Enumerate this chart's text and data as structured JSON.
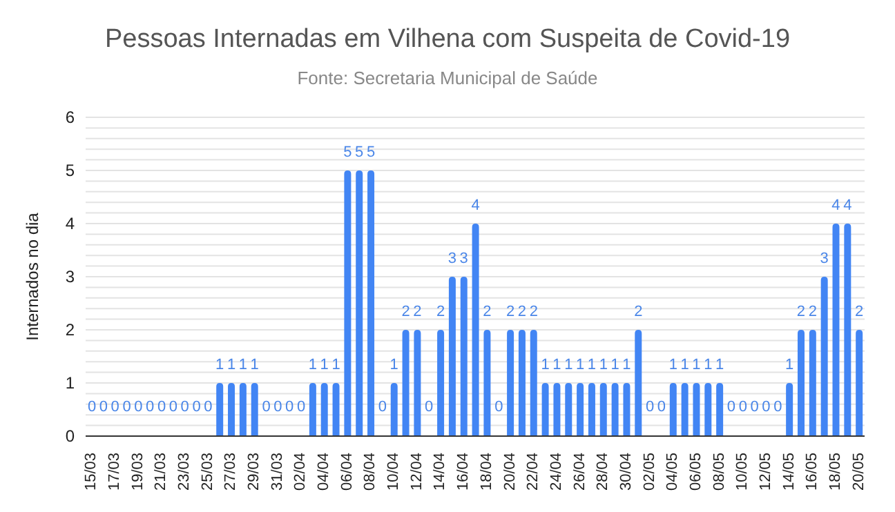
{
  "chart_data": {
    "type": "bar",
    "title": "Pessoas Internadas em Vilhena com Suspeita de Covid-19",
    "subtitle": "Fonte: Secretaria Municipal de Saúde",
    "ylabel": "Internados no dia",
    "categories": [
      "15/03",
      null,
      "17/03",
      null,
      "19/03",
      null,
      "21/03",
      null,
      "23/03",
      null,
      "25/03",
      null,
      "27/03",
      null,
      "29/03",
      null,
      "31/03",
      null,
      "02/04",
      null,
      "04/04",
      null,
      "06/04",
      null,
      "08/04",
      null,
      "10/04",
      null,
      "12/04",
      null,
      "14/04",
      null,
      "16/04",
      null,
      "18/04",
      null,
      "20/04",
      null,
      "22/04",
      null,
      "24/04",
      null,
      "26/04",
      null,
      "28/04",
      null,
      "30/04",
      null,
      "02/05",
      null,
      "04/05",
      null,
      "06/05",
      null,
      "08/05",
      null,
      "10/05",
      null,
      "12/05",
      null,
      "14/05",
      null,
      "16/05",
      null,
      "18/05",
      null,
      "20/05"
    ],
    "values": [
      0,
      0,
      0,
      0,
      0,
      0,
      0,
      0,
      0,
      0,
      0,
      1,
      1,
      1,
      1,
      0,
      0,
      0,
      0,
      1,
      1,
      1,
      5,
      5,
      5,
      0,
      1,
      2,
      2,
      0,
      2,
      3,
      3,
      4,
      2,
      0,
      2,
      2,
      2,
      1,
      1,
      1,
      1,
      1,
      1,
      1,
      1,
      2,
      0,
      0,
      1,
      1,
      1,
      1,
      1,
      0,
      0,
      0,
      0,
      0,
      1,
      2,
      2,
      3,
      4,
      4,
      2
    ],
    "color": "#4285f4",
    "ylim": [
      0,
      6
    ],
    "yticks": [
      0,
      {
        "value": 0.2,
        "label": null
      },
      {
        "value": 0.4,
        "label": null
      },
      {
        "value": 0.6,
        "label": null
      },
      {
        "value": 0.8,
        "label": null
      },
      1,
      {
        "value": 1.2,
        "label": null
      },
      {
        "value": 1.4,
        "label": null
      },
      {
        "value": 1.6,
        "label": null
      },
      {
        "value": 1.8,
        "label": null
      },
      2,
      {
        "value": 2.2,
        "label": null
      },
      {
        "value": 2.4,
        "label": null
      },
      {
        "value": 2.6,
        "label": null
      },
      {
        "value": 2.8,
        "label": null
      },
      3,
      {
        "value": 3.2,
        "label": null
      },
      {
        "value": 3.4,
        "label": null
      },
      {
        "value": 3.6,
        "label": null
      },
      {
        "value": 3.8,
        "label": null
      },
      4,
      {
        "value": 4.2,
        "label": null
      },
      {
        "value": 4.4,
        "label": null
      },
      {
        "value": 4.6,
        "label": null
      },
      {
        "value": 4.8,
        "label": null
      },
      5,
      {
        "value": 5.2,
        "label": null
      },
      {
        "value": 5.4,
        "label": null
      },
      {
        "value": 5.6,
        "label": null
      },
      {
        "value": 5.8,
        "label": null
      },
      6
    ],
    "grid": "y",
    "data_labels": true
  }
}
